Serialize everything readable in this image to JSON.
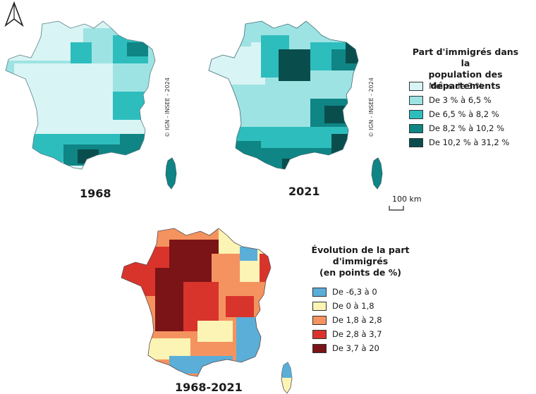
{
  "maps": {
    "m1968": {
      "year": "1968"
    },
    "m2021": {
      "year": "2021"
    },
    "evolution": {
      "year": "1968-2021"
    }
  },
  "copyright": "© IGN - INSEE - 2024",
  "scale_bar": {
    "label": "100 km"
  },
  "legend_share": {
    "title_line1": "Part d'immigrés dans la",
    "title_line2": "population des départements",
    "items": [
      {
        "label": "Moins de 3 %",
        "color": "#d8f4f4"
      },
      {
        "label": "De 3 % à 6,5 %",
        "color": "#9ee3e3"
      },
      {
        "label": "De 6,5 % à 8,2 %",
        "color": "#2ebdbd"
      },
      {
        "label": "De 8,2 % à 10,2 %",
        "color": "#0f8585"
      },
      {
        "label": "De 10,2 % à 31,2 %",
        "color": "#0a4d4d"
      }
    ]
  },
  "legend_evolution": {
    "title_line1": "Évolution de la part",
    "title_line2": "d'immigrés",
    "title_line3": "(en points de %)",
    "items": [
      {
        "label": "De -6,3 à 0",
        "color": "#5aaed8"
      },
      {
        "label": "De 0 à 1,8",
        "color": "#fbf4b4"
      },
      {
        "label": "De 1,8 à 2,8",
        "color": "#f4935f"
      },
      {
        "label": "De 2,8 à 3,7",
        "color": "#d9342b"
      },
      {
        "label": "De 3,7 à 20",
        "color": "#7a1416"
      }
    ]
  }
}
